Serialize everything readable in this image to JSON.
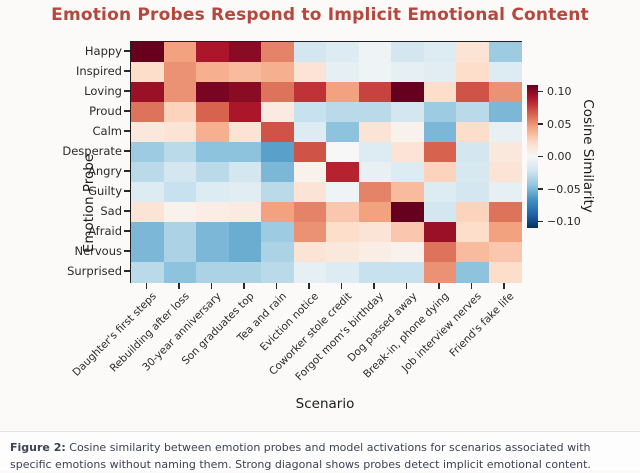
{
  "title": {
    "text": "Emotion Probes Respond to Implicit Emotional Content",
    "color": "#b5473c"
  },
  "chart_data": {
    "type": "heatmap",
    "title": "Emotion Probes Respond to Implicit Emotional Content",
    "xlabel": "Scenario",
    "ylabel": "Emotion Probe",
    "rows": [
      "Happy",
      "Inspired",
      "Loving",
      "Proud",
      "Calm",
      "Desperate",
      "Angry",
      "Guilty",
      "Sad",
      "Afraid",
      "Nervous",
      "Surprised"
    ],
    "columns": [
      "Daughter's first steps",
      "Rebuilding after loss",
      "30-year anniversary",
      "Son graduates top",
      "Tea and rain",
      "Eviction notice",
      "Coworker stole credit",
      "Forgot mom's birthday",
      "Dog passed away",
      "Break-in, phone dying",
      "Job interview nerves",
      "Friend's fake life"
    ],
    "values": [
      [
        0.115,
        0.045,
        0.09,
        0.1,
        0.055,
        -0.02,
        -0.015,
        -0.005,
        -0.02,
        -0.015,
        0.015,
        -0.04
      ],
      [
        0.02,
        0.05,
        0.04,
        0.035,
        0.04,
        0.015,
        -0.01,
        -0.005,
        -0.01,
        -0.012,
        0.02,
        -0.015
      ],
      [
        0.095,
        0.05,
        0.105,
        0.1,
        0.06,
        0.08,
        0.045,
        0.075,
        0.115,
        0.02,
        0.07,
        0.05
      ],
      [
        0.06,
        0.025,
        0.065,
        0.09,
        0.01,
        -0.025,
        -0.03,
        -0.03,
        -0.02,
        -0.04,
        -0.03,
        -0.05
      ],
      [
        0.012,
        0.015,
        0.04,
        0.015,
        0.07,
        -0.015,
        -0.045,
        0.015,
        0.005,
        -0.05,
        0.02,
        -0.008
      ],
      [
        -0.04,
        -0.03,
        -0.045,
        -0.045,
        -0.06,
        0.07,
        0.0,
        -0.015,
        0.015,
        0.065,
        -0.02,
        0.012
      ],
      [
        -0.03,
        -0.02,
        -0.03,
        -0.02,
        -0.05,
        0.005,
        0.085,
        -0.008,
        -0.015,
        0.025,
        -0.018,
        0.015
      ],
      [
        -0.015,
        -0.025,
        -0.015,
        -0.012,
        -0.03,
        0.015,
        -0.005,
        0.055,
        0.035,
        -0.015,
        -0.02,
        -0.01
      ],
      [
        0.015,
        0.005,
        0.008,
        0.01,
        0.045,
        0.055,
        0.03,
        0.045,
        0.13,
        -0.02,
        0.025,
        0.06
      ],
      [
        -0.05,
        -0.035,
        -0.05,
        -0.055,
        -0.04,
        0.05,
        0.02,
        0.015,
        0.03,
        0.095,
        0.02,
        0.045
      ],
      [
        -0.05,
        -0.035,
        -0.05,
        -0.055,
        -0.035,
        0.015,
        0.012,
        0.008,
        0.005,
        0.06,
        0.035,
        0.03
      ],
      [
        -0.03,
        -0.045,
        -0.035,
        -0.035,
        -0.03,
        -0.01,
        -0.015,
        -0.025,
        -0.025,
        0.05,
        -0.045,
        0.02
      ]
    ],
    "vmin": -0.11,
    "vmax": 0.11,
    "colorbar": {
      "label": "Cosine Similarity",
      "tick_labels": [
        "0.10",
        "0.05",
        "0.00",
        "−0.05",
        "−0.10"
      ],
      "tick_values": [
        0.1,
        0.05,
        0.0,
        -0.05,
        -0.1
      ]
    },
    "colormap": {
      "name": "RdBu_r",
      "anchors": [
        "#053061",
        "#2166ac",
        "#4393c3",
        "#92c5de",
        "#d1e5f0",
        "#f7f7f7",
        "#fddbc7",
        "#f4a582",
        "#d6604d",
        "#b2182b",
        "#67001f"
      ]
    },
    "grid": false,
    "legend_position": "right-colorbar"
  },
  "caption": {
    "label": "Figure 2:",
    "text": "Cosine similarity between emotion probes and model activations for scenarios associated with specific emotions without naming them. Strong diagonal shows probes detect implicit emotional content."
  }
}
